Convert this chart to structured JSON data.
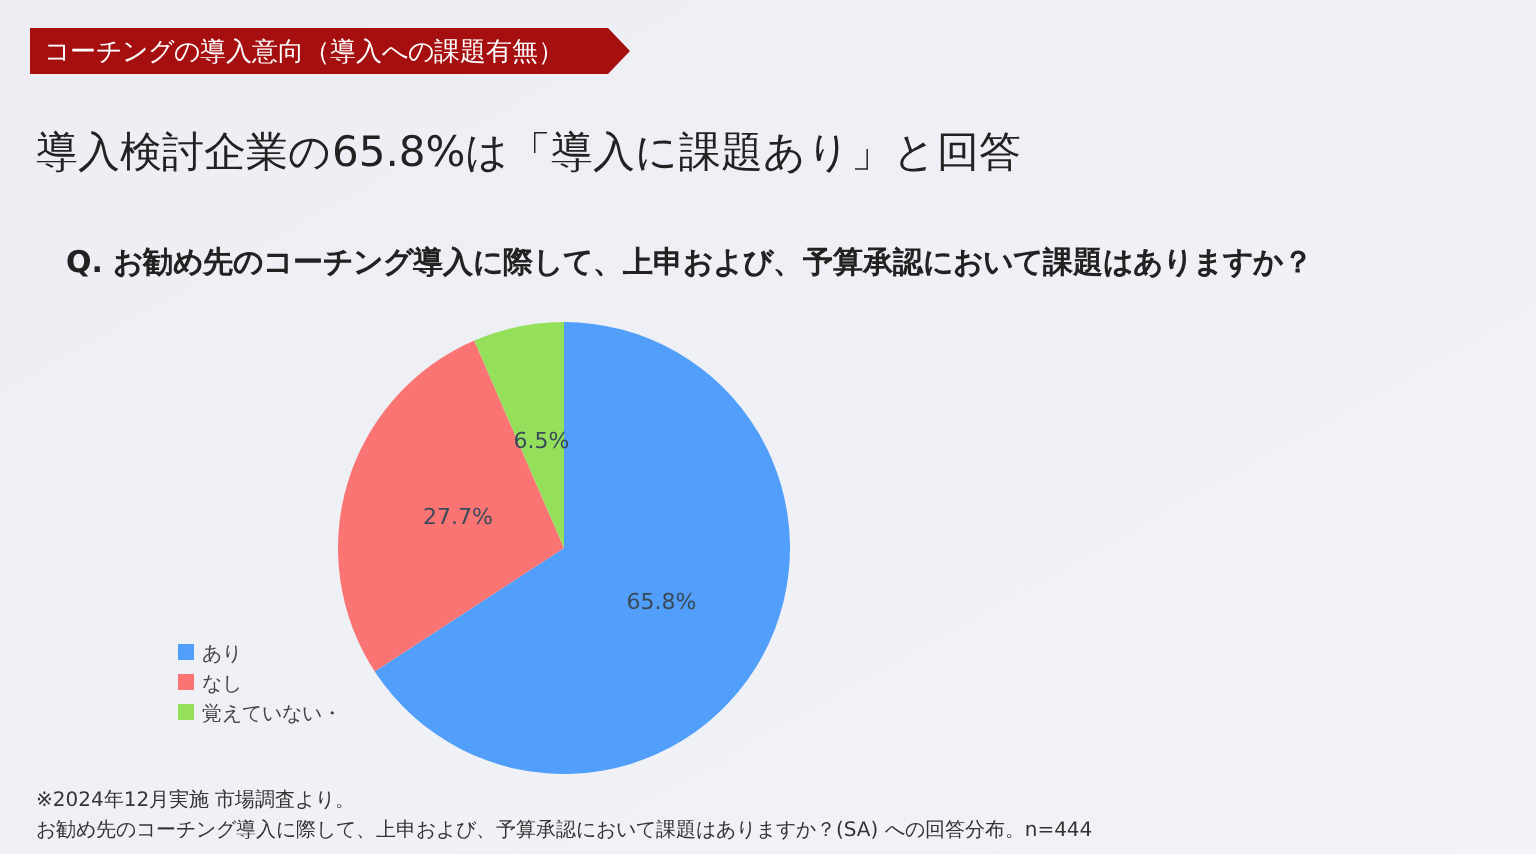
{
  "chart_data": {
    "type": "pie",
    "title": "導入検討企業の65.8%は「導入に課題あり」と回答",
    "subtitle": "Q. お勧め先のコーチング導入に際して、上申および、予算承認において課題はありますか？",
    "annotations": [
      "コーチングの導入意向（導入への課題有無）",
      "※2024年12月実施 市場調査より。",
      "お勧め先のコーチング導入に際して、上申および、予算承認において課題はありますか？(SA) への回答分布。n=444"
    ],
    "categories": [
      "あり",
      "なし",
      "覚えていない・"
    ],
    "values": [
      65.8,
      27.7,
      6.5
    ],
    "colors": [
      "#519ffa",
      "#fb7474",
      "#95e05b"
    ],
    "value_labels": [
      "65.8%",
      "27.7%",
      "6.5%"
    ],
    "legend": "bottom left"
  }
}
